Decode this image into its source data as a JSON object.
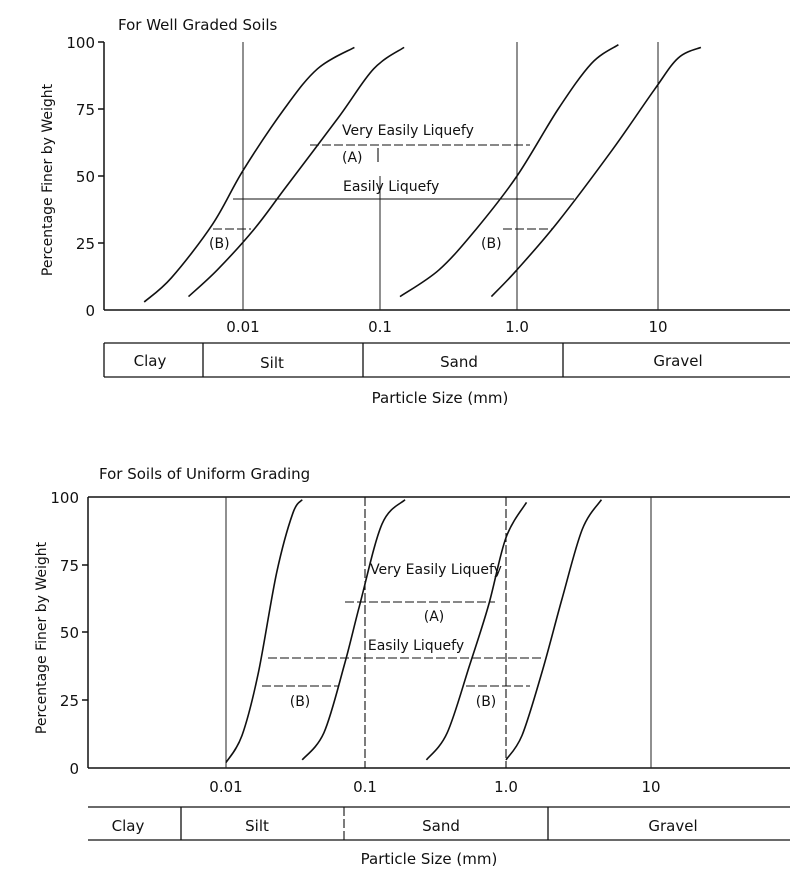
{
  "chart_data": [
    {
      "type": "line",
      "title": "For Well Graded Soils",
      "xlabel": "Particle Size (mm)",
      "ylabel": "Percentage Finer by Weight",
      "xscale": "log",
      "xlim": [
        0.0009,
        100
      ],
      "ylim": [
        0,
        100
      ],
      "yticks": [
        "0",
        "25",
        "50",
        "75",
        "100"
      ],
      "xticks": [
        {
          "value": 0.01,
          "label": "0.01"
        },
        {
          "value": 0.1,
          "label": "0.1"
        },
        {
          "value": 1.0,
          "label": "1.0"
        },
        {
          "value": 10,
          "label": "10"
        }
      ],
      "series": [
        {
          "x": [
            0.0019,
            0.003,
            0.006,
            0.01,
            0.02,
            0.035,
            0.065
          ],
          "y": [
            3,
            12,
            32,
            52,
            75,
            90,
            98
          ]
        },
        {
          "x": [
            0.004,
            0.0065,
            0.012,
            0.02,
            0.05,
            0.09,
            0.15
          ],
          "y": [
            5,
            15,
            30,
            45,
            72,
            90,
            98
          ]
        },
        {
          "x": [
            0.14,
            0.27,
            0.5,
            1.0,
            2.0,
            3.5,
            5.5
          ],
          "y": [
            5,
            15,
            30,
            50,
            75,
            92,
            99
          ]
        },
        {
          "x": [
            0.65,
            1.0,
            2.0,
            5.0,
            10,
            15,
            22
          ],
          "y": [
            5,
            15,
            33,
            60,
            82,
            94,
            98
          ]
        }
      ],
      "bands": [
        {
          "label": "Very Easily Liquefy",
          "sublabel": "(A)",
          "y": 60,
          "x_from": 0.028,
          "x_to": 2.4
        },
        {
          "label": "Easily Liquefy",
          "y": 40,
          "x_from": 0.0085,
          "x_to": 2.8
        },
        {
          "label": "(B)",
          "y": 29,
          "x_from": 0.0062,
          "x_to": 0.012
        },
        {
          "label": "(B)",
          "y": 29,
          "x_from": 0.5,
          "x_to": 1.6
        }
      ],
      "classification": [
        "Clay",
        "Silt",
        "Sand",
        "Gravel"
      ]
    },
    {
      "type": "line",
      "title": "For Soils of Uniform Grading",
      "xlabel": "Particle Size (mm)",
      "ylabel": "Percentage Finer by Weight",
      "xscale": "log",
      "xlim": [
        0.0009,
        100
      ],
      "ylim": [
        0,
        100
      ],
      "yticks": [
        "0",
        "25",
        "50",
        "75",
        "100"
      ],
      "xticks": [
        {
          "value": 0.01,
          "label": "0.01"
        },
        {
          "value": 0.1,
          "label": "0.1"
        },
        {
          "value": 1.0,
          "label": "1.0"
        },
        {
          "value": 10,
          "label": "10"
        }
      ],
      "series": [
        {
          "x": [
            0.01,
            0.013,
            0.017,
            0.023,
            0.03,
            0.035
          ],
          "y": [
            2,
            12,
            35,
            72,
            94,
            99
          ]
        },
        {
          "x": [
            0.035,
            0.05,
            0.07,
            0.09,
            0.13,
            0.19
          ],
          "y": [
            3,
            13,
            38,
            60,
            90,
            99
          ]
        },
        {
          "x": [
            0.27,
            0.38,
            0.55,
            0.75,
            1.0,
            1.4
          ],
          "y": [
            3,
            13,
            38,
            60,
            85,
            98
          ]
        },
        {
          "x": [
            1.0,
            1.3,
            1.8,
            2.5,
            3.5,
            4.8
          ],
          "y": [
            3,
            12,
            35,
            62,
            88,
            99
          ]
        }
      ],
      "bands": [
        {
          "label": "Very Easily Liquefy",
          "sublabel": "(A)",
          "y": 60,
          "x_from": 0.08,
          "x_to": 0.75
        },
        {
          "label": "Easily Liquefy",
          "y": 40,
          "x_from": 0.02,
          "x_to": 1.8
        },
        {
          "label": "(B)",
          "y": 29,
          "x_from": 0.018,
          "x_to": 0.065
        },
        {
          "label": "(B)",
          "y": 29,
          "x_from": 0.52,
          "x_to": 1.5
        }
      ],
      "classification": [
        "Clay",
        "Silt",
        "Sand",
        "Gravel"
      ]
    }
  ]
}
